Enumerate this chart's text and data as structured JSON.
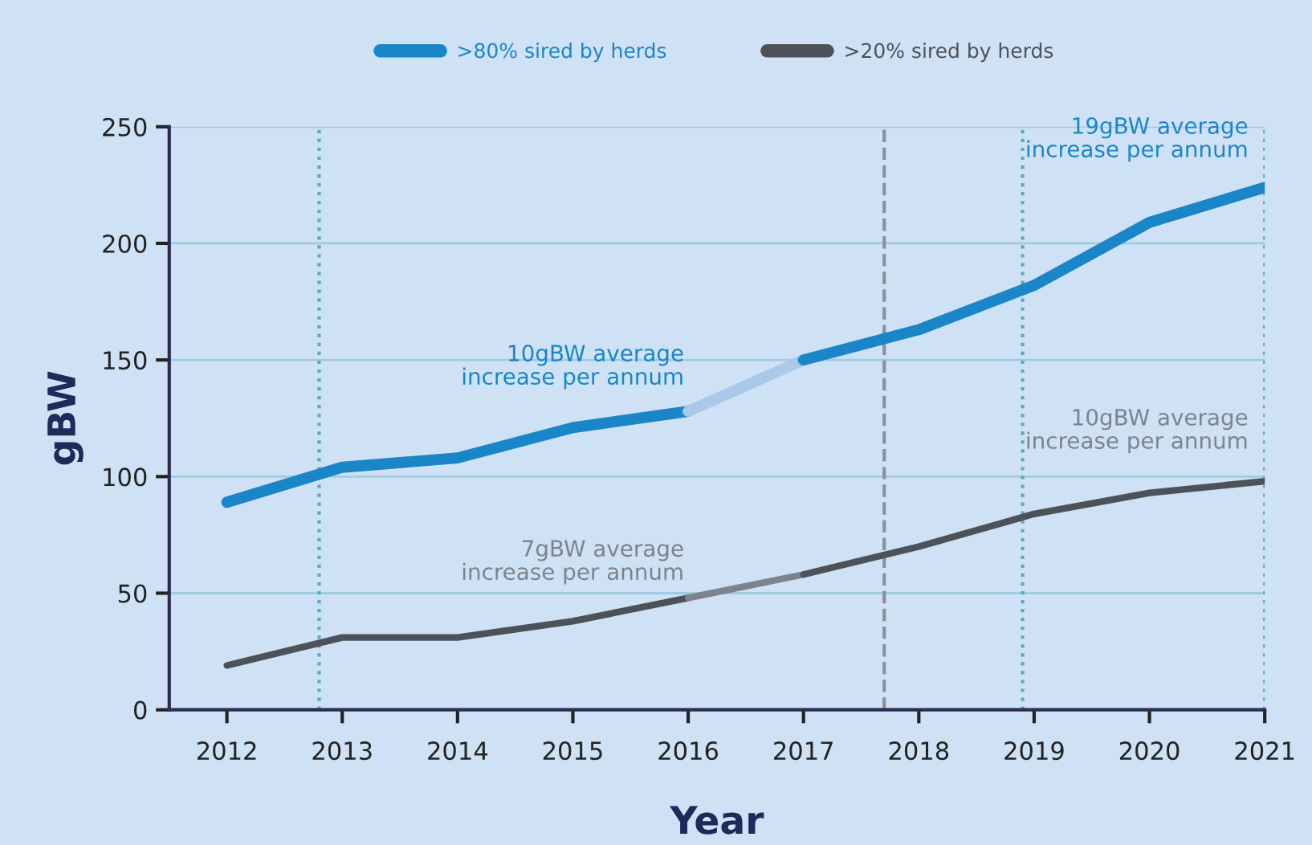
{
  "chart_data": {
    "type": "line",
    "xlabel": "Year",
    "ylabel": "gBW",
    "xlim": [
      2011.5,
      2021
    ],
    "xticks": [
      2012,
      2013,
      2014,
      2015,
      2016,
      2017,
      2018,
      2019,
      2020,
      2021
    ],
    "ylim": [
      0,
      250
    ],
    "yticks": [
      0,
      50,
      100,
      150,
      200,
      250
    ],
    "grid": "y",
    "legend": "top",
    "marker": "none",
    "line_style": "solid",
    "series": [
      {
        "name": ">80% sired by herds",
        "color": "#1a86c8",
        "x": [
          2012,
          2013,
          2014,
          2015,
          2016
        ],
        "values": [
          89,
          104,
          108,
          121,
          128
        ]
      },
      {
        "color": "#a9c8ea",
        "x": [
          2016,
          2017
        ],
        "values": [
          128,
          150
        ]
      },
      {
        "color": "#1a86c8",
        "x": [
          2017,
          2018,
          2019,
          2020,
          2021
        ],
        "values": [
          150,
          163,
          182,
          209,
          224
        ]
      },
      {
        "name": ">20% sired by herds",
        "color": "#4d5259",
        "x": [
          2012,
          2013,
          2014,
          2015,
          2016
        ],
        "values": [
          19,
          31,
          31,
          38,
          48
        ]
      },
      {
        "color": "#7c838c",
        "x": [
          2016,
          2017
        ],
        "values": [
          48,
          58
        ]
      },
      {
        "color": "#4d5259",
        "x": [
          2017,
          2018,
          2019,
          2020,
          2021
        ],
        "values": [
          58,
          70,
          84,
          93,
          98
        ]
      }
    ],
    "ref_lines": [
      {
        "axis": "x",
        "value": 2012.8,
        "color": "#5aaabf",
        "line_style": "dotted"
      },
      {
        "axis": "x",
        "value": 2017.7,
        "color": "#8a9099",
        "line_style": "dashed"
      },
      {
        "axis": "x",
        "value": 2018.9,
        "color": "#5aaabf",
        "line_style": "dotted"
      },
      {
        "axis": "x",
        "value": 2021,
        "color": "#5aaabf",
        "line_style": "dotted"
      }
    ],
    "annotations": [
      "10gBW average\nincrease per annum",
      "7gBW average\nincrease per annum",
      "19gBW average\nincrease per annum",
      "10gBW average\nincrease per annum"
    ]
  }
}
